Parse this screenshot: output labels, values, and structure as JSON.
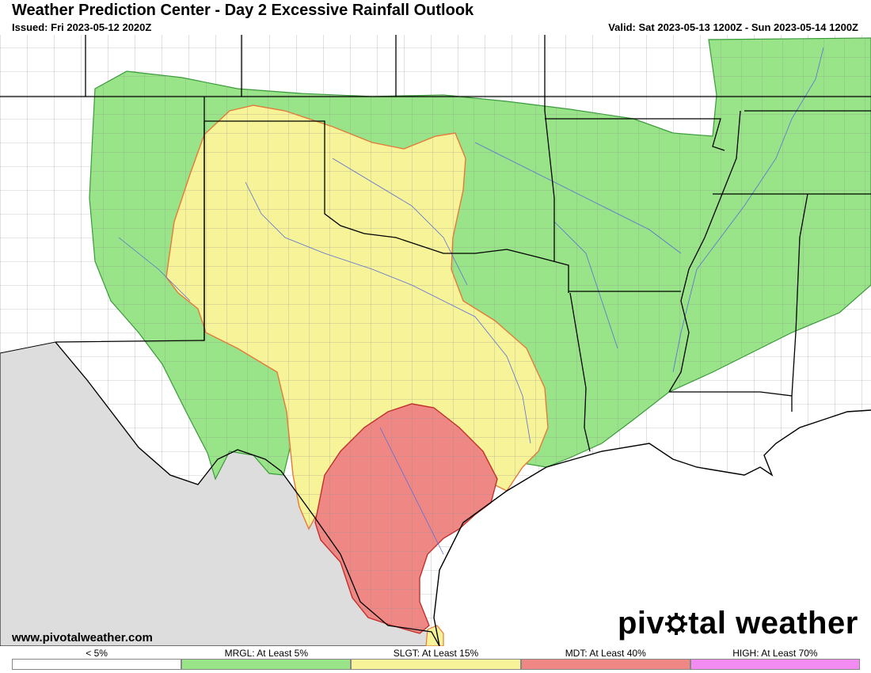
{
  "header": {
    "title": "Weather Prediction Center - Day 2 Excessive Rainfall Outlook",
    "issued": "Issued: Fri 2023-05-12 2020Z",
    "valid": "Valid: Sat 2023-05-13 1200Z - Sun 2023-05-14 1200Z"
  },
  "footer": {
    "website": "www.pivotalweather.com",
    "brand_left": "piv",
    "brand_right": "tal weather"
  },
  "legend": [
    {
      "label": "< 5%",
      "color": "#ffffff"
    },
    {
      "label": "MRGL: At Least 5%",
      "color": "#99e488"
    },
    {
      "label": "SLGT: At Least 15%",
      "color": "#f7f399"
    },
    {
      "label": "MDT: At Least 40%",
      "color": "#ef8784"
    },
    {
      "label": "HIGH: At Least 70%",
      "color": "#f28cf2"
    }
  ],
  "colors": {
    "mrgl": "#99e488",
    "slgt": "#f7f399",
    "mdt": "#ef8784",
    "mexico": "#dddddd",
    "state_border": "#000000",
    "county_border": "#aaaaaa",
    "river": "#5a6fd6"
  }
}
